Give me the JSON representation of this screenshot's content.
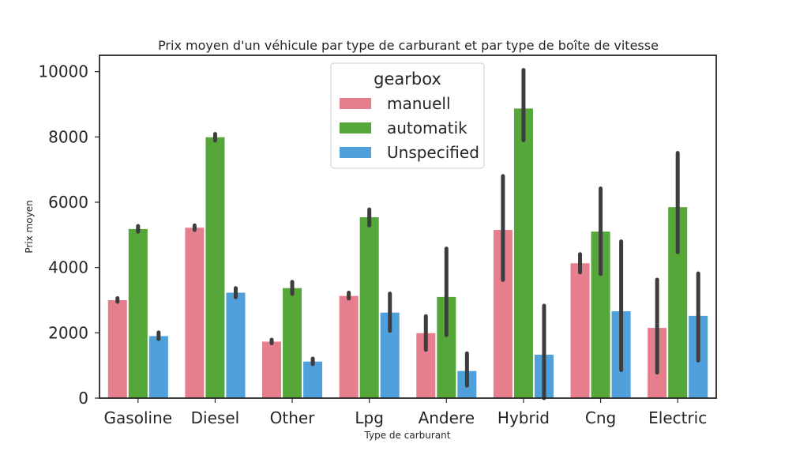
{
  "chart_data": {
    "type": "bar",
    "title": "Prix moyen d'un véhicule par type de carburant et par type de boîte de vitesse",
    "xlabel": "Type de carburant",
    "ylabel": "Prix moyen",
    "ylim": [
      0,
      10500
    ],
    "yticks": [
      0,
      2000,
      4000,
      6000,
      8000,
      10000
    ],
    "grid": false,
    "legend": {
      "title": "gearbox",
      "placement": "top-center"
    },
    "categories": [
      "Gasoline",
      "Diesel",
      "Other",
      "Lpg",
      "Andere",
      "Hybrid",
      "Cng",
      "Electric"
    ],
    "series": [
      {
        "name": "manuell",
        "color": "#e67e8e",
        "values": [
          3000,
          5220,
          1730,
          3130,
          1990,
          5150,
          4130,
          2150
        ],
        "ci": [
          [
            2950,
            3060
          ],
          [
            5150,
            5290
          ],
          [
            1680,
            1790
          ],
          [
            3050,
            3230
          ],
          [
            1480,
            2510
          ],
          [
            3620,
            6800
          ],
          [
            3850,
            4410
          ],
          [
            780,
            3630
          ]
        ]
      },
      {
        "name": "automatik",
        "color": "#56a73a",
        "values": [
          5180,
          7990,
          3370,
          5540,
          3100,
          8870,
          5100,
          5850
        ],
        "ci": [
          [
            5100,
            5270
          ],
          [
            7890,
            8090
          ],
          [
            3190,
            3560
          ],
          [
            5290,
            5780
          ],
          [
            1930,
            4580
          ],
          [
            7900,
            10050
          ],
          [
            3800,
            6420
          ],
          [
            4470,
            7510
          ]
        ]
      },
      {
        "name": "Unspecified",
        "color": "#50a0dc",
        "values": [
          1900,
          3230,
          1120,
          2620,
          830,
          1330,
          2660,
          2520
        ],
        "ci": [
          [
            1810,
            2010
          ],
          [
            3090,
            3370
          ],
          [
            1040,
            1210
          ],
          [
            2060,
            3200
          ],
          [
            380,
            1370
          ],
          [
            0,
            2830
          ],
          [
            860,
            4800
          ],
          [
            1150,
            3820
          ]
        ]
      }
    ]
  }
}
